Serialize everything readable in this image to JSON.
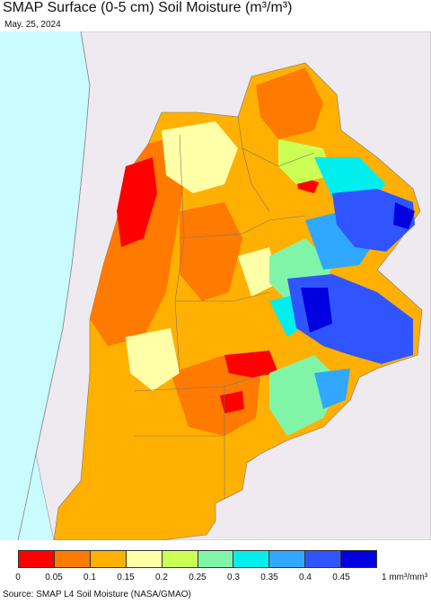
{
  "title": "SMAP Surface (0-5 cm) Soil Moisture (m³/m³)",
  "date": "May. 25, 2024",
  "legend": {
    "ticks": [
      "0",
      "0.05",
      "0.1",
      "0.15",
      "0.2",
      "0.25",
      "0.3",
      "0.35",
      "0.4",
      "0.45"
    ],
    "unit": "1 mm³/mm³",
    "colors": [
      "#ff0000",
      "#ff7a00",
      "#ffb000",
      "#ffffa8",
      "#ccff55",
      "#80f5a8",
      "#00eeee",
      "#30a8ff",
      "#3055ff",
      "#0000e0"
    ]
  },
  "map": {
    "ocean_color": "#c9fbff",
    "outside_land_color": "#eeeaef",
    "border_color": "#888888"
  },
  "source": "Source: SMAP L4 Soil Moisture (NASA/GMAO)"
}
